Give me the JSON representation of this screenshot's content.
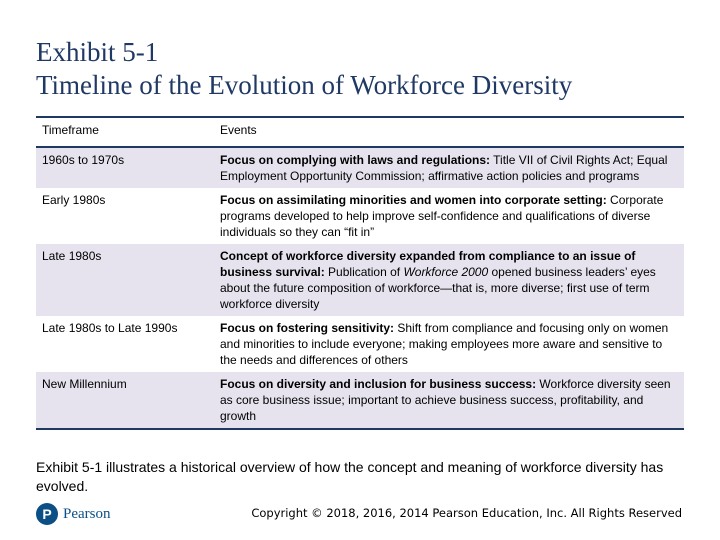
{
  "title": {
    "line1": "Exhibit 5-1",
    "line2": "Timeline of the Evolution of Workforce Diversity"
  },
  "table": {
    "headers": [
      "Timeframe",
      "Events"
    ],
    "rows": [
      {
        "timeframe": "1960s to 1970s",
        "lead": "Focus on complying with laws and regulations:",
        "text": " Title VII of Civil Rights Act; Equal Employment Opportunity Commission; affirmative action policies and programs"
      },
      {
        "timeframe": "Early 1980s",
        "lead": "Focus on assimilating minorities and women into corporate setting:",
        "text": " Corporate programs developed to help improve self-confidence and qualifications of diverse individuals so they can “fit in”"
      },
      {
        "timeframe": "Late 1980s",
        "lead": "Concept of workforce diversity expanded from compliance to an issue of business survival:",
        "text_before": " Publication of ",
        "italic": "Workforce 2000",
        "text_after": " opened business leaders’ eyes about the future composition of workforce—that is, more diverse; first use of term workforce diversity"
      },
      {
        "timeframe": "Late 1980s to Late 1990s",
        "lead": "Focus on fostering sensitivity:",
        "text": " Shift from compliance and focusing only on women and minorities to include everyone; making employees more aware and sensitive to the needs and differences of others"
      },
      {
        "timeframe": "New Millennium",
        "lead": "Focus on diversity and inclusion for business success:",
        "text": " Workforce diversity seen as core business issue; important to achieve business success, profitability, and growth"
      }
    ]
  },
  "caption": "Exhibit 5-1 illustrates a historical overview of how the concept and meaning of workforce diversity has evolved.",
  "footer": {
    "logo_mark": "P",
    "logo_text": "Pearson",
    "copyright": "Copyright © 2018, 2016, 2014 Pearson Education, Inc. All Rights Reserved"
  },
  "colors": {
    "title": "#1f3864",
    "row_shade": "#e6e3ef",
    "rule": "#1f3864",
    "logo": "#0b4f85"
  }
}
